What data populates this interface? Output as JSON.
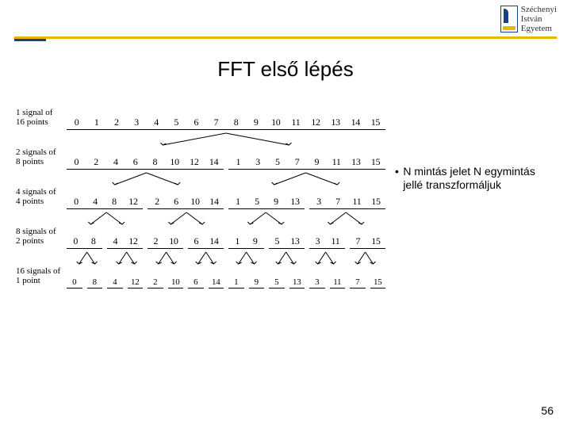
{
  "header": {
    "institution_line1": "Széchenyi",
    "institution_line2": "István",
    "institution_line3": "Egyetem"
  },
  "title": "FFT első lépés",
  "bullet": {
    "marker": "•",
    "text": "N mintás jelet N egymintás jellé transzformáljuk"
  },
  "page_number": "56",
  "diagram": {
    "rows": [
      {
        "label": "1 signal of\n16 points",
        "groups": [
          [
            "0",
            "1",
            "2",
            "3",
            "4",
            "5",
            "6",
            "7",
            "8",
            "9",
            "10",
            "11",
            "12",
            "13",
            "14",
            "15"
          ]
        ]
      },
      {
        "label": "2 signals of\n8 points",
        "groups": [
          [
            "0",
            "2",
            "4",
            "6",
            "8",
            "10",
            "12",
            "14"
          ],
          [
            "1",
            "3",
            "5",
            "7",
            "9",
            "11",
            "13",
            "15"
          ]
        ]
      },
      {
        "label": "4 signals of\n4 points",
        "groups": [
          [
            "0",
            "4",
            "8",
            "12"
          ],
          [
            "2",
            "6",
            "10",
            "14"
          ],
          [
            "1",
            "5",
            "9",
            "13"
          ],
          [
            "3",
            "7",
            "11",
            "15"
          ]
        ]
      },
      {
        "label": "8 signals of\n2 points",
        "groups": [
          [
            "0",
            "8"
          ],
          [
            "4",
            "12"
          ],
          [
            "2",
            "10"
          ],
          [
            "6",
            "14"
          ],
          [
            "1",
            "9"
          ],
          [
            "5",
            "13"
          ],
          [
            "3",
            "11"
          ],
          [
            "7",
            "15"
          ]
        ]
      },
      {
        "label": "16 signals of\n1 point",
        "groups": [
          [
            "0"
          ],
          [
            "8"
          ],
          [
            "4"
          ],
          [
            "12"
          ],
          [
            "2"
          ],
          [
            "10"
          ],
          [
            "6"
          ],
          [
            "14"
          ],
          [
            "1"
          ],
          [
            "9"
          ],
          [
            "5"
          ],
          [
            "13"
          ],
          [
            "3"
          ],
          [
            "11"
          ],
          [
            "7"
          ],
          [
            "15"
          ]
        ]
      }
    ]
  },
  "colors": {
    "accent_blue": "#1a3e87",
    "accent_yellow": "#e9b600",
    "background": "#ffffff",
    "text": "#000000"
  }
}
